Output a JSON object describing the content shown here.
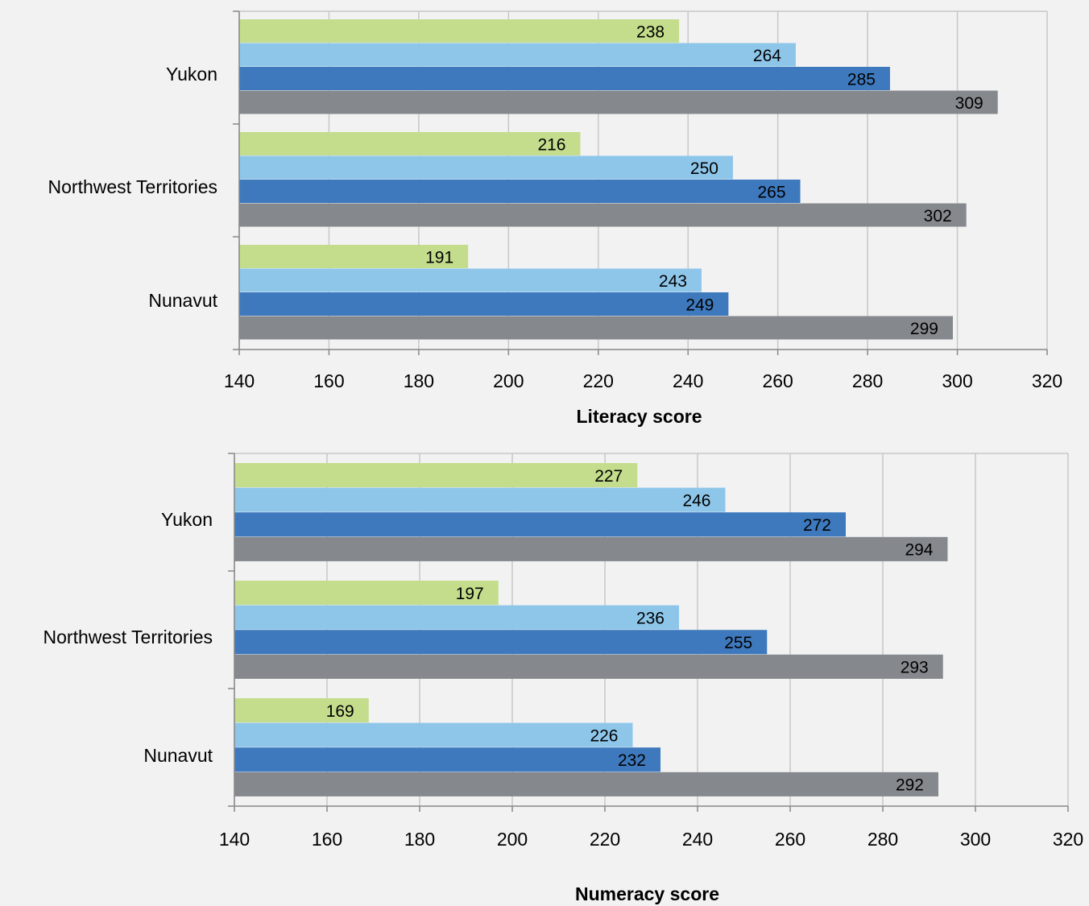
{
  "colors": {
    "series": [
      "#c4dd8c",
      "#8ec6ea",
      "#3e79be",
      "#85898d"
    ],
    "grid": "#c8c8c8",
    "axis": "#888888",
    "background": "#f2f2f2"
  },
  "chart_data": [
    {
      "type": "bar",
      "orientation": "horizontal",
      "categories": [
        "Yukon",
        "Northwest Territories",
        "Nunavut"
      ],
      "series": [
        {
          "values": [
            238,
            216,
            191
          ]
        },
        {
          "values": [
            264,
            250,
            243
          ]
        },
        {
          "values": [
            285,
            265,
            249
          ]
        },
        {
          "values": [
            309,
            302,
            299
          ]
        }
      ],
      "xlabel": "Literacy score",
      "xlim": [
        140,
        320
      ],
      "xticks": [
        "140",
        "160",
        "180",
        "200",
        "220",
        "240",
        "260",
        "280",
        "300",
        "320"
      ],
      "grid": true,
      "legend": "none"
    },
    {
      "type": "bar",
      "orientation": "horizontal",
      "categories": [
        "Yukon",
        "Northwest Territories",
        "Nunavut"
      ],
      "series": [
        {
          "values": [
            227,
            197,
            169
          ]
        },
        {
          "values": [
            246,
            236,
            226
          ]
        },
        {
          "values": [
            272,
            255,
            232
          ]
        },
        {
          "values": [
            294,
            293,
            292
          ]
        }
      ],
      "xlabel": "Numeracy score",
      "xlim": [
        140,
        320
      ],
      "xticks": [
        "140",
        "160",
        "180",
        "200",
        "220",
        "240",
        "260",
        "280",
        "300",
        "320"
      ],
      "grid": true,
      "legend": "none"
    }
  ]
}
